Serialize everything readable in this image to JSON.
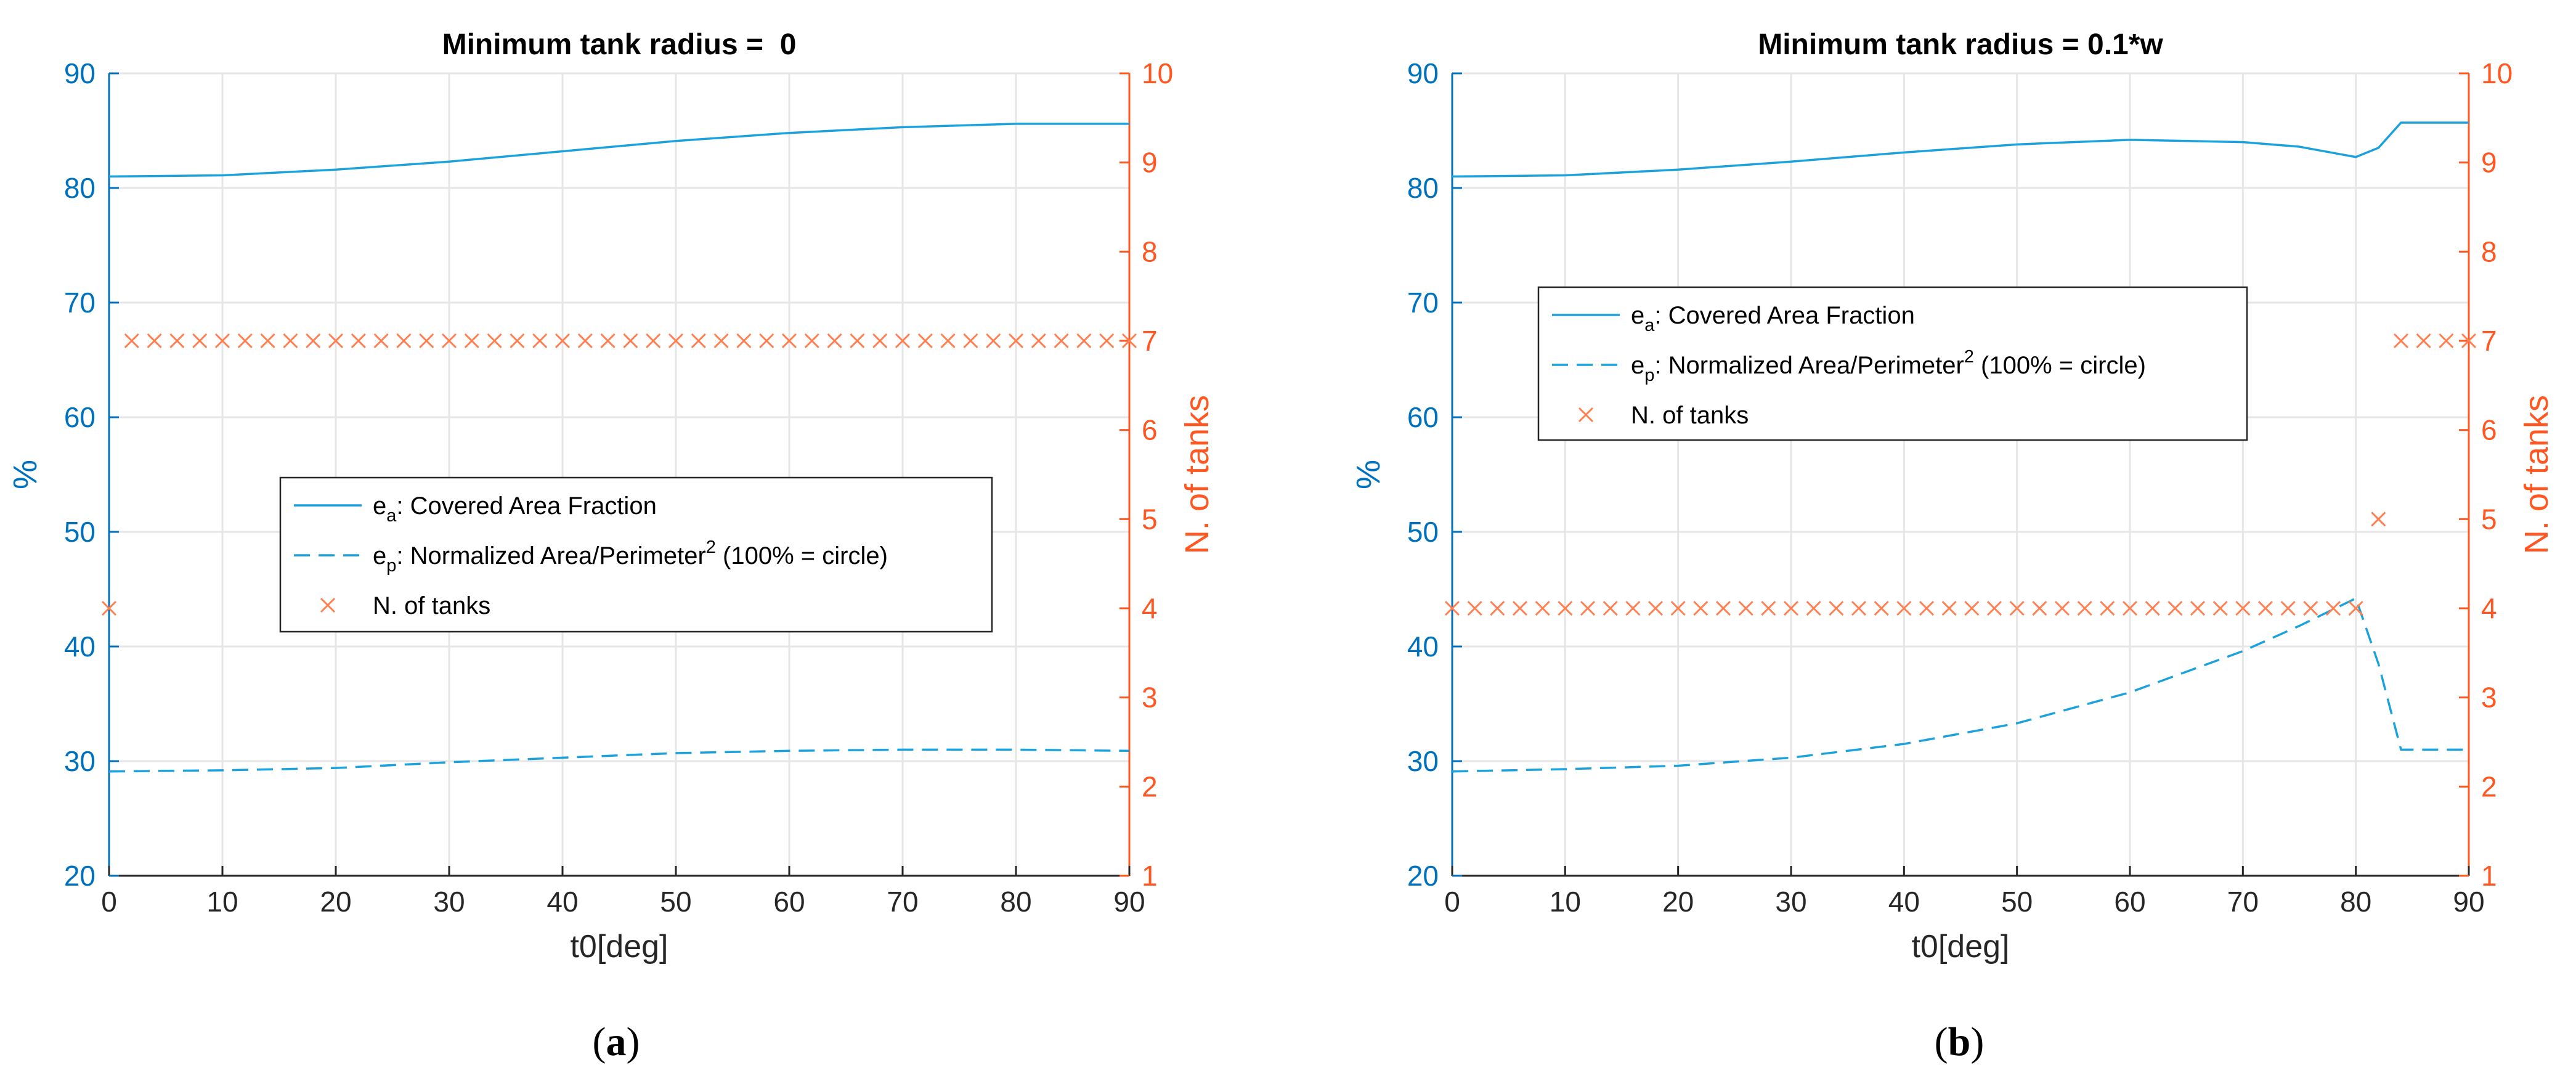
{
  "colors": {
    "left_axis": "#0072BD",
    "right_axis": "#FF5722",
    "series_line": "#1BA1DC",
    "markers": "#FF7F50",
    "grid": "#E6E6E6",
    "text": "#000000"
  },
  "chart_data": [
    {
      "type": "line",
      "panel_label": "a",
      "title": "Minimum tank radius =  0",
      "xlabel": "t0[deg]",
      "ylabel_left": "%",
      "ylabel_right": "N. of tanks",
      "xlim": [
        0,
        90
      ],
      "ylim_left": [
        20,
        90
      ],
      "ylim_right": [
        1,
        10
      ],
      "xticks": [
        0,
        10,
        20,
        30,
        40,
        50,
        60,
        70,
        80,
        90
      ],
      "yticks_left": [
        20,
        30,
        40,
        50,
        60,
        70,
        80,
        90
      ],
      "yticks_right": [
        1,
        2,
        3,
        4,
        5,
        6,
        7,
        8,
        9,
        10
      ],
      "grid": true,
      "legend_placement": "center",
      "legend": [
        {
          "base": "e",
          "sub": "a",
          "sup": "",
          "text": ": Covered Area Fraction",
          "style": "solid"
        },
        {
          "base": "e",
          "sub": "p",
          "sup": "2",
          "text": ": Normalized Area/Perimeter",
          "suffix": " (100% = circle)",
          "style": "dashed"
        },
        {
          "base": "",
          "sub": "",
          "sup": "",
          "text": "N. of tanks",
          "style": "marker"
        }
      ],
      "series": [
        {
          "name": "ea: Covered Area Fraction",
          "axis": "left",
          "style": "solid",
          "x": [
            0,
            10,
            20,
            30,
            40,
            50,
            60,
            70,
            80,
            90
          ],
          "values": [
            81.0,
            81.1,
            81.6,
            82.3,
            83.2,
            84.1,
            84.8,
            85.3,
            85.6,
            85.6
          ]
        },
        {
          "name": "ep: Normalized Area/Perimeter^2 (100% = circle)",
          "axis": "left",
          "style": "dashed",
          "x": [
            0,
            10,
            20,
            30,
            40,
            50,
            60,
            70,
            80,
            90
          ],
          "values": [
            29.1,
            29.2,
            29.4,
            29.9,
            30.3,
            30.7,
            30.9,
            31.0,
            31.0,
            30.9
          ]
        },
        {
          "name": "N. of tanks",
          "axis": "right",
          "style": "marker",
          "x": [
            0,
            2,
            4,
            6,
            8,
            10,
            12,
            14,
            16,
            18,
            20,
            22,
            24,
            26,
            28,
            30,
            32,
            34,
            36,
            38,
            40,
            42,
            44,
            46,
            48,
            50,
            52,
            54,
            56,
            58,
            60,
            62,
            64,
            66,
            68,
            70,
            72,
            74,
            76,
            78,
            80,
            82,
            84,
            86,
            88,
            90
          ],
          "values": [
            4,
            7,
            7,
            7,
            7,
            7,
            7,
            7,
            7,
            7,
            7,
            7,
            7,
            7,
            7,
            7,
            7,
            7,
            7,
            7,
            7,
            7,
            7,
            7,
            7,
            7,
            7,
            7,
            7,
            7,
            7,
            7,
            7,
            7,
            7,
            7,
            7,
            7,
            7,
            7,
            7,
            7,
            7,
            7,
            7,
            7
          ]
        }
      ]
    },
    {
      "type": "line",
      "panel_label": "b",
      "title": "Minimum tank radius = 0.1*w",
      "xlabel": "t0[deg]",
      "ylabel_left": "%",
      "ylabel_right": "N. of tanks",
      "xlim": [
        0,
        90
      ],
      "ylim_left": [
        20,
        90
      ],
      "ylim_right": [
        1,
        10
      ],
      "xticks": [
        0,
        10,
        20,
        30,
        40,
        50,
        60,
        70,
        80,
        90
      ],
      "yticks_left": [
        20,
        30,
        40,
        50,
        60,
        70,
        80,
        90
      ],
      "yticks_right": [
        1,
        2,
        3,
        4,
        5,
        6,
        7,
        8,
        9,
        10
      ],
      "grid": true,
      "legend_placement": "top-left",
      "legend": [
        {
          "base": "e",
          "sub": "a",
          "sup": "",
          "text": ": Covered Area Fraction",
          "style": "solid"
        },
        {
          "base": "e",
          "sub": "p",
          "sup": "2",
          "text": ": Normalized Area/Perimeter",
          "suffix": " (100% = circle)",
          "style": "dashed"
        },
        {
          "base": "",
          "sub": "",
          "sup": "",
          "text": "N. of tanks",
          "style": "marker"
        }
      ],
      "series": [
        {
          "name": "ea: Covered Area Fraction",
          "axis": "left",
          "style": "solid",
          "x": [
            0,
            10,
            20,
            30,
            40,
            50,
            60,
            70,
            75,
            80,
            82,
            84,
            86,
            88,
            90
          ],
          "values": [
            81.0,
            81.1,
            81.6,
            82.3,
            83.1,
            83.8,
            84.2,
            84.0,
            83.6,
            82.7,
            83.5,
            85.7,
            85.7,
            85.7,
            85.7
          ]
        },
        {
          "name": "ep: Normalized Area/Perimeter^2 (100% = circle)",
          "axis": "left",
          "style": "dashed",
          "x": [
            0,
            10,
            20,
            30,
            40,
            50,
            60,
            70,
            75,
            80,
            82,
            84,
            86,
            88,
            90
          ],
          "values": [
            29.1,
            29.3,
            29.6,
            30.3,
            31.5,
            33.3,
            36.0,
            39.6,
            41.8,
            44.2,
            38.5,
            31.0,
            31.0,
            31.0,
            31.0
          ]
        },
        {
          "name": "N. of tanks",
          "axis": "right",
          "style": "marker",
          "x": [
            0,
            2,
            4,
            6,
            8,
            10,
            12,
            14,
            16,
            18,
            20,
            22,
            24,
            26,
            28,
            30,
            32,
            34,
            36,
            38,
            40,
            42,
            44,
            46,
            48,
            50,
            52,
            54,
            56,
            58,
            60,
            62,
            64,
            66,
            68,
            70,
            72,
            74,
            76,
            78,
            80,
            82,
            84,
            86,
            88,
            90
          ],
          "values": [
            4,
            4,
            4,
            4,
            4,
            4,
            4,
            4,
            4,
            4,
            4,
            4,
            4,
            4,
            4,
            4,
            4,
            4,
            4,
            4,
            4,
            4,
            4,
            4,
            4,
            4,
            4,
            4,
            4,
            4,
            4,
            4,
            4,
            4,
            4,
            4,
            4,
            4,
            4,
            4,
            4,
            5,
            7,
            7,
            7,
            7
          ]
        }
      ]
    }
  ]
}
